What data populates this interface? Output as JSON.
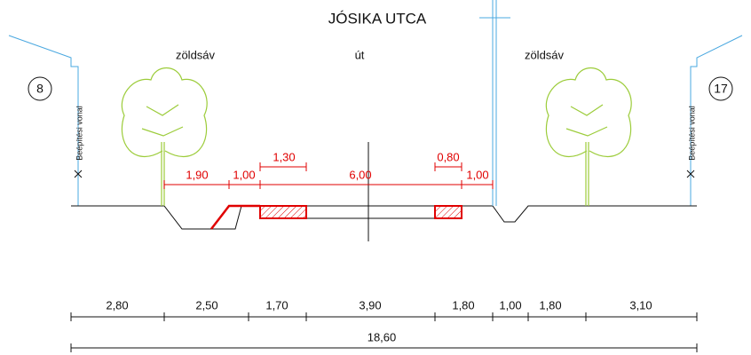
{
  "title": "JÓSIKA UTCA",
  "zones": [
    "zöldsáv",
    "út",
    "zöldsáv"
  ],
  "house_numbers": [
    "8",
    "17"
  ],
  "building_line": [
    "Beépítési vonal",
    "Beépítési vonal"
  ],
  "red_dimensions": [
    "1,90",
    "1,00",
    "1,30",
    "6,00",
    "0,80",
    "1,00"
  ],
  "bottom_dimensions": [
    "2,80",
    "2,50",
    "1,70",
    "3,90",
    "1,80",
    "1,00",
    "1,80",
    "3,10"
  ],
  "total_dimension": "18,60"
}
